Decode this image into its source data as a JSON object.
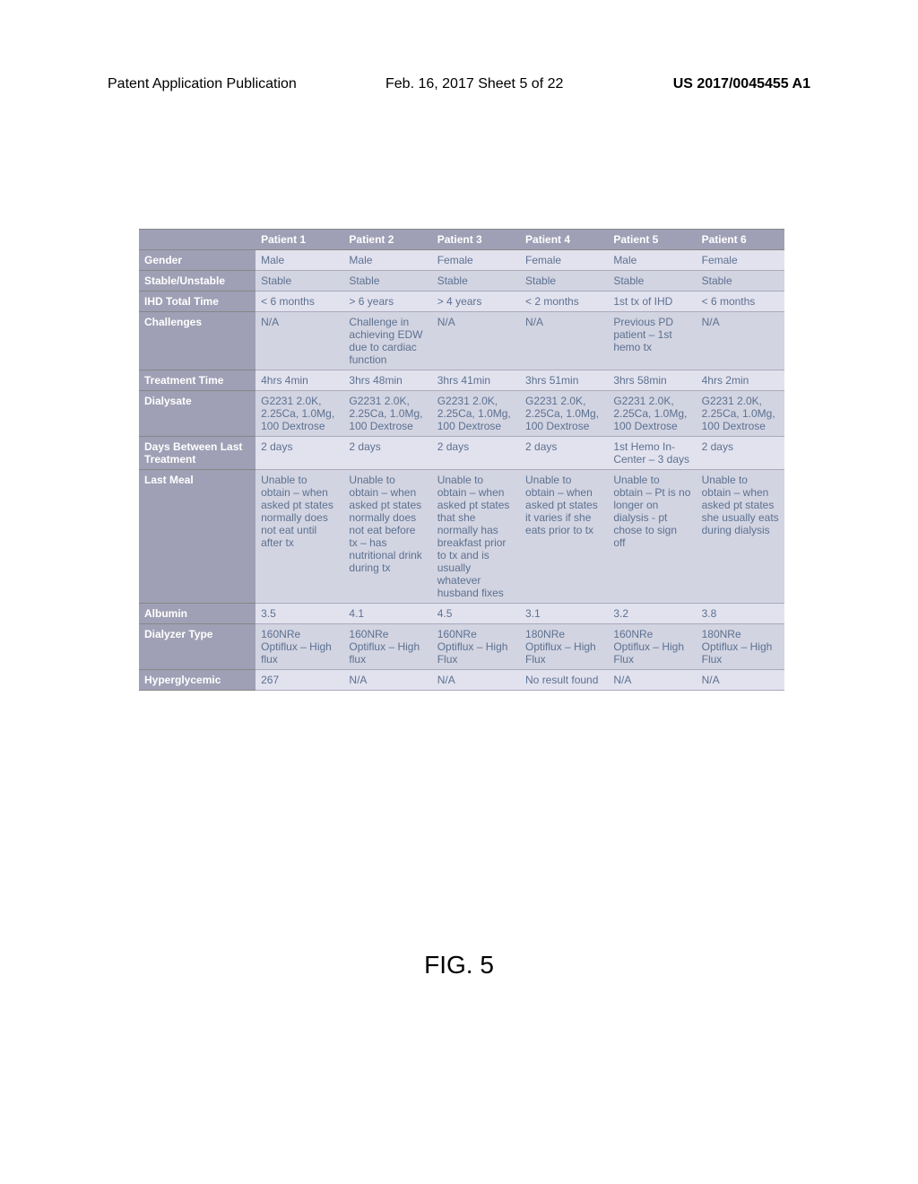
{
  "header": {
    "left": "Patent Application Publication",
    "mid": "Feb. 16, 2017  Sheet 5 of 22",
    "right": "US 2017/0045455 A1"
  },
  "figureLabel": "FIG. 5",
  "columns": [
    "",
    "Patient 1",
    "Patient 2",
    "Patient 3",
    "Patient 4",
    "Patient 5",
    "Patient 6"
  ],
  "rows": [
    {
      "label": "Gender",
      "cells": [
        "Male",
        "Male",
        "Female",
        "Female",
        "Male",
        "Female"
      ]
    },
    {
      "label": "Stable/Unstable",
      "cells": [
        "Stable",
        "Stable",
        "Stable",
        "Stable",
        "Stable",
        "Stable"
      ]
    },
    {
      "label": "IHD Total Time",
      "cells": [
        "< 6 months",
        "> 6 years",
        "> 4 years",
        "< 2 months",
        "1st tx of IHD",
        "< 6 months"
      ]
    },
    {
      "label": "Challenges",
      "cells": [
        "N/A",
        "Challenge in achieving EDW due to cardiac function",
        "N/A",
        "N/A",
        "Previous PD patient – 1st hemo tx",
        "N/A"
      ]
    },
    {
      "label": "Treatment Time",
      "cells": [
        "4hrs 4min",
        "3hrs 48min",
        "3hrs 41min",
        "3hrs 51min",
        "3hrs 58min",
        "4hrs 2min"
      ]
    },
    {
      "label": "Dialysate",
      "cells": [
        "G2231 2.0K, 2.25Ca, 1.0Mg, 100 Dextrose",
        "G2231 2.0K, 2.25Ca, 1.0Mg, 100 Dextrose",
        "G2231 2.0K, 2.25Ca, 1.0Mg, 100 Dextrose",
        "G2231 2.0K, 2.25Ca, 1.0Mg, 100 Dextrose",
        "G2231 2.0K, 2.25Ca, 1.0Mg, 100 Dextrose",
        "G2231 2.0K, 2.25Ca, 1.0Mg, 100 Dextrose"
      ]
    },
    {
      "label": "Days Between Last Treatment",
      "cells": [
        "2 days",
        "2 days",
        "2 days",
        "2 days",
        "1st Hemo In-Center – 3 days",
        "2 days"
      ]
    },
    {
      "label": "Last Meal",
      "cells": [
        "Unable to obtain – when asked pt states normally does not eat until after tx",
        "Unable to obtain – when asked pt states normally does not eat before tx – has nutritional drink during tx",
        "Unable to obtain – when asked pt states that she normally has breakfast prior to tx and is usually whatever husband fixes",
        "Unable to obtain – when asked pt states it varies if she eats prior to tx",
        "Unable to obtain – Pt is no longer on dialysis - pt chose to sign off",
        "Unable to obtain – when asked pt states she usually eats during dialysis"
      ]
    },
    {
      "label": "Albumin",
      "cells": [
        "3.5",
        "4.1",
        "4.5",
        "3.1",
        "3.2",
        "3.8"
      ]
    },
    {
      "label": "Dialyzer Type",
      "cells": [
        "160NRe Optiflux – High flux",
        "160NRe Optiflux – High flux",
        "160NRe Optiflux – High Flux",
        "180NRe Optiflux – High Flux",
        "160NRe Optiflux – High Flux",
        "180NRe Optiflux – High Flux"
      ]
    },
    {
      "label": "Hyperglycemic",
      "cells": [
        "267",
        "N/A",
        "N/A",
        "No result found",
        "N/A",
        "N/A"
      ]
    }
  ],
  "colors": {
    "headerBg": "#9f9fb5",
    "headerText": "#ffffff",
    "cellText": "#5d718f",
    "stripeA": "#e2e2ef",
    "stripeB": "#d2d4e2"
  },
  "colWidths": [
    "18%",
    "13.6%",
    "13.6%",
    "13.6%",
    "13.6%",
    "13.6%",
    "13.6%"
  ]
}
